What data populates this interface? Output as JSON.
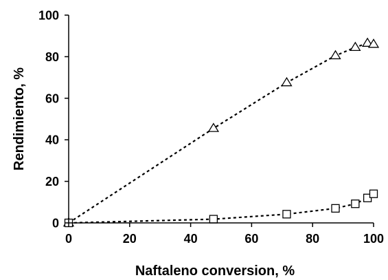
{
  "chart_data": {
    "type": "scatter",
    "xlabel": "Naftaleno conversion, %",
    "ylabel": "Rendimiento, %",
    "xlim": [
      0,
      100
    ],
    "ylim": [
      0,
      100
    ],
    "xticks": [
      "0",
      "20",
      "40",
      "60",
      "80",
      "100"
    ],
    "yticks": [
      "0",
      "20",
      "40",
      "60",
      "80",
      "100"
    ],
    "grid": false,
    "legend": "none",
    "series": [
      {
        "marker": "triangle",
        "points": [
          {
            "x": 0,
            "y": 0
          },
          {
            "x": 47.5,
            "y": 45.5
          },
          {
            "x": 71.5,
            "y": 67.5
          },
          {
            "x": 87.5,
            "y": 80.5
          },
          {
            "x": 94,
            "y": 84.5
          },
          {
            "x": 98,
            "y": 86.5
          },
          {
            "x": 100,
            "y": 86
          }
        ]
      },
      {
        "marker": "square",
        "points": [
          {
            "x": 0,
            "y": 0
          },
          {
            "x": 47.5,
            "y": 1.8
          },
          {
            "x": 71.5,
            "y": 4.2
          },
          {
            "x": 87.5,
            "y": 7
          },
          {
            "x": 94,
            "y": 9.2
          },
          {
            "x": 98,
            "y": 12
          },
          {
            "x": 100,
            "y": 14
          }
        ]
      }
    ],
    "colors": {
      "ink": "#000000",
      "marker_fill": "#ffffff"
    }
  }
}
